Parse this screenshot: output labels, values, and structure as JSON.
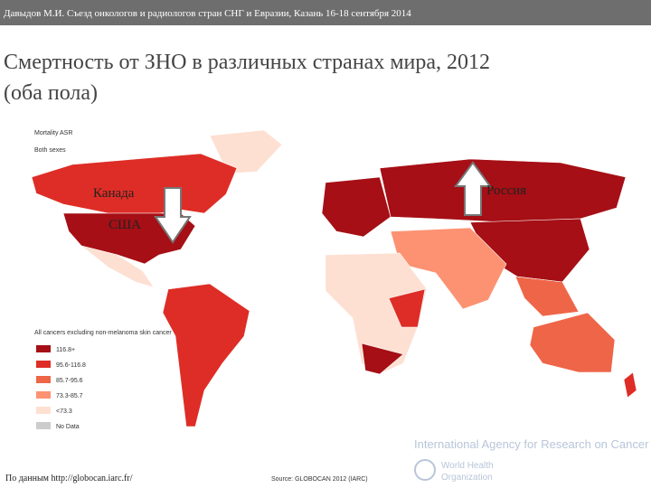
{
  "header": {
    "text": "Давыдов М.И. Съезд онкологов и радиологов стран СНГ и Евразии, Казань 16-18 сентября 2014"
  },
  "title": {
    "lines": [
      "Смертность от ЗНО в различных странах мира, 2012",
      "(оба пола)"
    ]
  },
  "map": {
    "caption": [
      "Mortality ASR",
      "Both sexes"
    ],
    "labels": {
      "canada": "Канада",
      "usa": "США",
      "russia": "Россия"
    },
    "legend": {
      "title": "All cancers excluding non-melanoma skin cancer",
      "items": [
        {
          "label": "116.8+",
          "color": "#a50f15"
        },
        {
          "label": "95.6-116.8",
          "color": "#de2d26"
        },
        {
          "label": "85.7-95.6",
          "color": "#ef6548"
        },
        {
          "label": "73.3-85.7",
          "color": "#fc9272"
        },
        {
          "label": "<73.3",
          "color": "#fde0d2"
        },
        {
          "label": "No Data",
          "color": "#cccccc"
        }
      ]
    }
  },
  "footer": {
    "source_ru": "По данным http://globocan.iarc.fr/",
    "source_en": "Source: GLOBOCAN 2012 (IARC)",
    "agency": "International Agency for Research on Cancer",
    "who": [
      "World Health",
      "Organization"
    ]
  }
}
